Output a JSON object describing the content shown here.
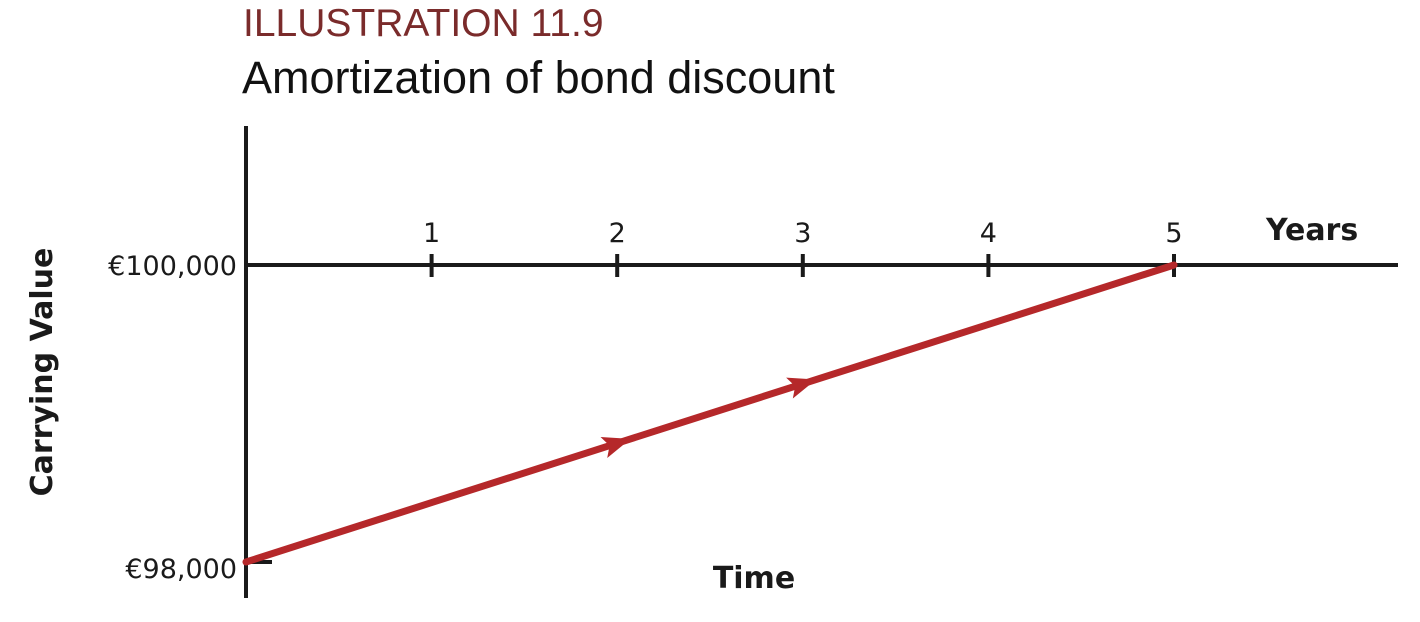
{
  "header": {
    "illustration_label": "ILLUSTRATION 11.9",
    "title": "Amortization of bond discount"
  },
  "chart_data": {
    "type": "line",
    "title": "Amortization of bond discount",
    "xlabel": "Time",
    "x_unit_label": "Years",
    "ylabel": "Carrying Value",
    "x_ticks": [
      "1",
      "2",
      "3",
      "4",
      "5"
    ],
    "y_ticks": [
      "€98,000",
      "€100,000"
    ],
    "xlim": [
      0,
      5
    ],
    "ylim": [
      98000,
      100000
    ],
    "grid": false,
    "legend": "none",
    "series": [
      {
        "x": [
          0,
          1,
          2,
          3,
          4,
          5
        ],
        "y": [
          98000,
          98400,
          98800,
          99200,
          99600,
          100000
        ],
        "direction_arrows_at_x": [
          2,
          3
        ]
      }
    ],
    "colors": {
      "series": "#b5282a",
      "axis": "#1a1a1a"
    }
  }
}
